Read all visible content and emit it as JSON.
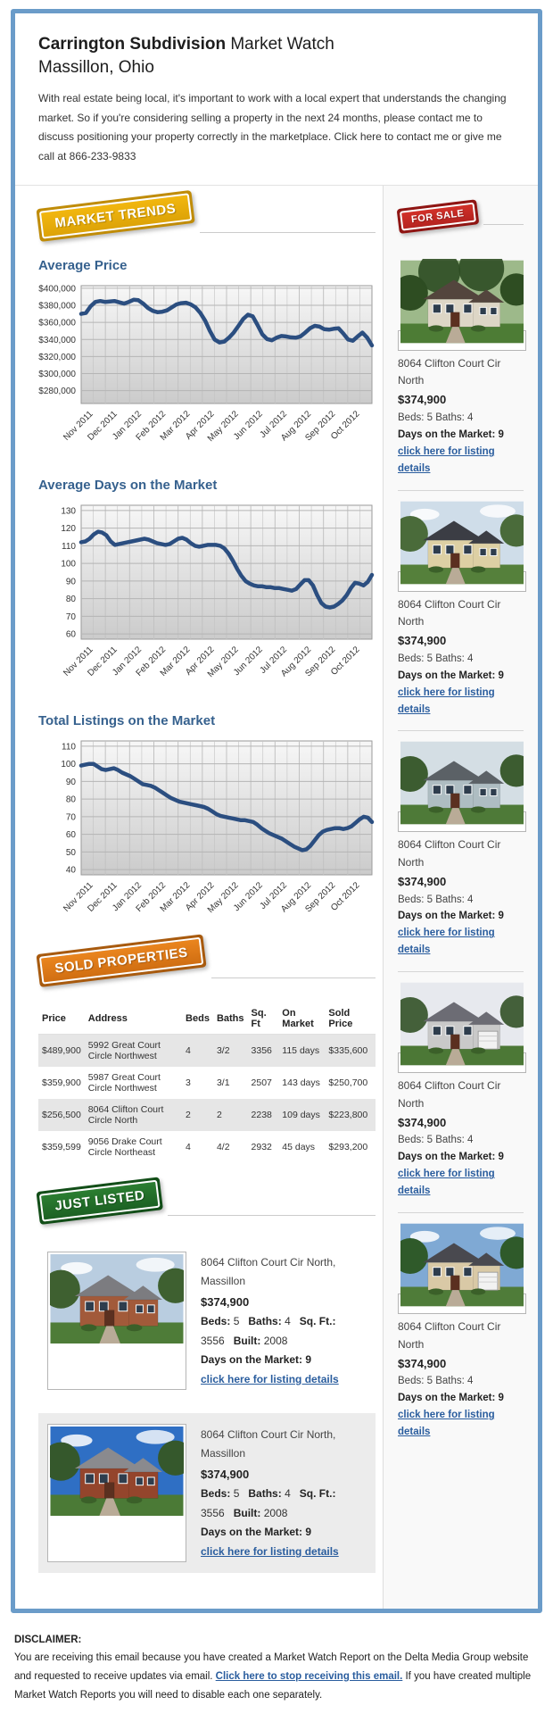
{
  "header": {
    "title_bold": "Carrington Subdivision",
    "title_rest": " Market Watch",
    "subtitle": "Massillon, Ohio",
    "intro": "With real estate being local, it's important to work with a local expert that understands the changing market. So if you're considering selling a property in the next 24 months, please contact me to discuss positioning your property correctly in the marketplace. Click here to contact me or give me call at 866-233-9833"
  },
  "sections": {
    "market_trends": "MARKET TRENDS",
    "for_sale": "FOR SALE",
    "sold_properties": "SOLD PROPERTIES",
    "just_listed": "JUST LISTED"
  },
  "colors": {
    "frame_blue": "#6b9cc9",
    "heading_blue": "#36618e",
    "link_blue": "#2a5d9e",
    "line_navy": "#2b4e80",
    "ribbon_yellow": "#e8ac0b",
    "ribbon_red": "#c42a24",
    "ribbon_orange": "#dd7717",
    "ribbon_green": "#237028"
  },
  "chart_data": [
    {
      "type": "line",
      "title": "Average Price",
      "xlabel": "",
      "ylabel": "",
      "categories": [
        "Nov 2011",
        "Dec 2011",
        "Jan 2012",
        "Feb 2012",
        "Mar 2012",
        "Apr 2012",
        "May 2012",
        "Jun 2012",
        "Jul 2012",
        "Aug 2012",
        "Sep 2012",
        "Oct 2012"
      ],
      "ylim": [
        265000,
        403000
      ],
      "yticks": [
        400000,
        380000,
        360000,
        340000,
        320000,
        300000,
        280000
      ],
      "tick_prefix": "$",
      "grid": true,
      "legend": "none",
      "values": [
        370000,
        371000,
        379000,
        384000,
        385000,
        384000,
        384500,
        385000,
        383500,
        382000,
        384000,
        386500,
        386000,
        382000,
        377000,
        373500,
        372000,
        372500,
        374000,
        377500,
        381000,
        382500,
        383000,
        381000,
        377500,
        371000,
        362000,
        350000,
        340000,
        336500,
        337500,
        342000,
        348000,
        356000,
        364000,
        369000,
        367000,
        357000,
        346000,
        340500,
        339000,
        342000,
        344000,
        343500,
        342500,
        342000,
        343500,
        348000,
        353000,
        356000,
        355000,
        352000,
        351500,
        352500,
        353000,
        347000,
        340000,
        338500,
        343500,
        348000,
        342000,
        333000
      ]
    },
    {
      "type": "line",
      "title": "Average Days on the Market",
      "xlabel": "",
      "ylabel": "",
      "categories": [
        "Nov 2011",
        "Dec 2011",
        "Jan 2012",
        "Feb 2012",
        "Mar 2012",
        "Apr 2012",
        "May 2012",
        "Jun 2012",
        "Jul 2012",
        "Aug 2012",
        "Sep 2012",
        "Oct 2012"
      ],
      "ylim": [
        57,
        133
      ],
      "yticks": [
        130,
        120,
        110,
        100,
        90,
        80,
        70,
        60
      ],
      "tick_prefix": "",
      "grid": true,
      "legend": "none",
      "values": [
        112,
        112.5,
        114,
        116.5,
        118,
        117.5,
        116,
        112.5,
        110.5,
        111,
        111.5,
        112,
        112.5,
        113,
        113.5,
        114,
        113.5,
        112.5,
        111.5,
        111,
        110.5,
        111,
        112.5,
        114,
        114.5,
        113.5,
        111.5,
        110,
        109.5,
        110,
        110.5,
        110.5,
        110.5,
        110,
        108.5,
        105.5,
        101.5,
        97,
        93,
        90,
        88.5,
        87.5,
        87,
        87,
        86.5,
        86.5,
        86,
        86,
        85.5,
        85,
        84.5,
        85.5,
        88,
        90.5,
        90.5,
        87.5,
        82,
        77.5,
        75.5,
        75,
        75.5,
        77,
        79,
        82,
        86,
        89,
        88.5,
        87.5,
        89.5,
        93.5
      ]
    },
    {
      "type": "line",
      "title": "Total Listings on the Market",
      "xlabel": "",
      "ylabel": "",
      "categories": [
        "Nov 2011",
        "Dec 2011",
        "Jan 2012",
        "Feb 2012",
        "Mar 2012",
        "Apr 2012",
        "May 2012",
        "Jun 2012",
        "Jul 2012",
        "Aug 2012",
        "Sep 2012",
        "Oct 2012"
      ],
      "ylim": [
        37,
        113
      ],
      "yticks": [
        110,
        100,
        90,
        80,
        70,
        60,
        50,
        40
      ],
      "tick_prefix": "",
      "grid": true,
      "legend": "none",
      "values": [
        99,
        99.5,
        100,
        100,
        98.5,
        97,
        96.5,
        97,
        97.5,
        96.5,
        95,
        94,
        93,
        91.5,
        90,
        88.5,
        88,
        87.5,
        86.5,
        85,
        83.5,
        82,
        80.5,
        79.5,
        78.5,
        78,
        77.5,
        77,
        76.5,
        76,
        75.5,
        74.5,
        73,
        71.5,
        70.5,
        70,
        69.5,
        69,
        68.5,
        68,
        68,
        67.5,
        67,
        65.5,
        63.5,
        62,
        60.5,
        59.5,
        58.5,
        57.5,
        56,
        54.5,
        53,
        52,
        51,
        51.5,
        53.5,
        56.5,
        59.5,
        61.5,
        62.5,
        63,
        63.5,
        63.5,
        63,
        63.5,
        64.5,
        66.5,
        68.5,
        70,
        69.5,
        67
      ]
    }
  ],
  "sale_listings": [
    {
      "address": "8064 Clifton Court Cir North",
      "price": "$374,900",
      "beds_baths": "Beds: 5 Baths: 4",
      "days": "Days on the Market: 9",
      "link": "click here for listing details",
      "photo": {
        "sky": "#9db98a",
        "tree": "#2e4d22",
        "wall": "#ddd6c6",
        "roof": "#53453d",
        "grass": "#4d7c35",
        "clouds": false,
        "garage": false,
        "big_trees": true
      }
    },
    {
      "address": "8064 Clifton Court Cir North",
      "price": "$374,900",
      "beds_baths": "Beds: 5 Baths: 4",
      "days": "Days on the Market: 9",
      "link": "click here for listing details",
      "photo": {
        "sky": "#cfdde9",
        "tree": "#4a6b3a",
        "wall": "#ddd0a4",
        "roof": "#3b3d44",
        "grass": "#55803b",
        "clouds": true,
        "garage": false,
        "big_trees": false
      }
    },
    {
      "address": "8064 Clifton Court Cir North",
      "price": "$374,900",
      "beds_baths": "Beds: 5 Baths: 4",
      "days": "Days on the Market: 9",
      "link": "click here for listing details",
      "photo": {
        "sky": "#d4dee4",
        "tree": "#3c5c30",
        "wall": "#aebdc2",
        "roof": "#5b6166",
        "grass": "#4e7a38",
        "clouds": false,
        "garage": false,
        "big_trees": false
      }
    },
    {
      "address": "8064 Clifton Court Cir North",
      "price": "$374,900",
      "beds_baths": "Beds: 5 Baths: 4",
      "days": "Days on the Market: 9",
      "link": "click here for listing details",
      "photo": {
        "sky": "#e7e9ee",
        "tree": "#44603a",
        "wall": "#c9c9c9",
        "roof": "#6c6c74",
        "grass": "#4c7836",
        "clouds": false,
        "garage": true,
        "big_trees": false
      }
    },
    {
      "address": "8064 Clifton Court Cir North",
      "price": "$374,900",
      "beds_baths": "Beds: 5 Baths: 4",
      "days": "Days on the Market: 9",
      "link": "click here for listing details",
      "photo": {
        "sky": "#7fa9d4",
        "tree": "#2f5a2a",
        "wall": "#d9c9a6",
        "roof": "#49494f",
        "grass": "#4f7c39",
        "clouds": true,
        "garage": true,
        "big_trees": false
      }
    }
  ],
  "sold_table": {
    "headers": [
      "Price",
      "Address",
      "Beds",
      "Baths",
      "Sq. Ft",
      "On Market",
      "Sold Price"
    ],
    "rows": [
      {
        "price": "$489,900",
        "address": "5992 Great Court Circle Northwest",
        "beds": "4",
        "baths": "3/2",
        "sqft": "3356",
        "on_market": "115 days",
        "sold_price": "$335,600"
      },
      {
        "price": "$359,900",
        "address": "5987 Great Court Circle Northwest",
        "beds": "3",
        "baths": "3/1",
        "sqft": "2507",
        "on_market": "143 days",
        "sold_price": "$250,700"
      },
      {
        "price": "$256,500",
        "address": "8064 Clifton Court Circle North",
        "beds": "2",
        "baths": "2",
        "sqft": "2238",
        "on_market": "109 days",
        "sold_price": "$223,800"
      },
      {
        "price": "$359,599",
        "address": "9056 Drake Court Circle Northeast",
        "beds": "4",
        "baths": "4/2",
        "sqft": "2932",
        "on_market": "45 days",
        "sold_price": "$293,200"
      }
    ]
  },
  "just_listed": [
    {
      "address": "8064 Clifton Court Cir North, Massillon",
      "price": "$374,900",
      "beds_label": "Beds:",
      "beds": "5",
      "baths_label": "Baths:",
      "baths": "4",
      "sqft_label": "Sq. Ft.:",
      "sqft": "3556",
      "built_label": "Built:",
      "built": "2008",
      "days": "Days on the Market: 9",
      "link": "click here for listing details",
      "photo": {
        "sky": "#b9cde0",
        "tree": "#3e6030",
        "wall": "#a25a3a",
        "roof": "#7c7c80",
        "grass": "#4e7c38",
        "clouds": true,
        "garage": false,
        "big_trees": false
      }
    },
    {
      "address": "8064 Clifton Court Cir North, Massillon",
      "price": "$374,900",
      "beds_label": "Beds:",
      "beds": "5",
      "baths_label": "Baths:",
      "baths": "4",
      "sqft_label": "Sq. Ft.:",
      "sqft": "3556",
      "built_label": "Built:",
      "built": "2008",
      "days": "Days on the Market: 9",
      "link": "click here for listing details",
      "photo": {
        "sky": "#2f6fc4",
        "tree": "#35582c",
        "wall": "#94452c",
        "roof": "#8a8a8e",
        "grass": "#4b7a36",
        "clouds": true,
        "garage": false,
        "big_trees": false
      }
    }
  ],
  "footer": {
    "heading": "DISCLAIMER:",
    "text_before": "You are receiving this email because you have created a Market Watch Report on the Delta Media Group website and requested to receive updates via email. ",
    "link": "Click here to stop receiving this email.",
    "text_after": " If you have created multiple Market Watch Reports you will need to disable each one separately."
  }
}
